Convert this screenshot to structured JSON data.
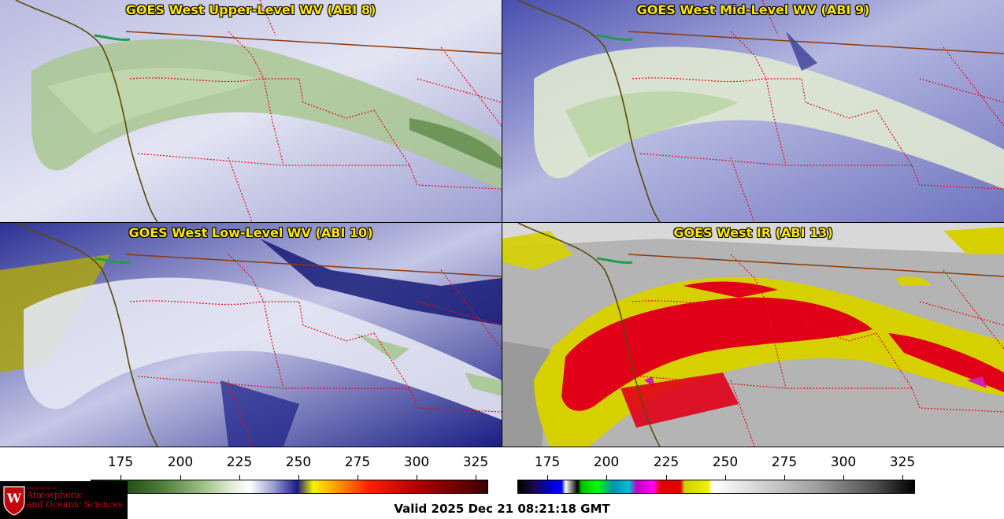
{
  "panels": [
    {
      "id": "upper",
      "title": "GOES West Upper-Level WV (ABI 8)",
      "bg": "#c9cbe6",
      "cloud": "#a7c58e"
    },
    {
      "id": "mid",
      "title": "GOES West Mid-Level WV (ABI 9)",
      "bg": "#8f93cc",
      "cloud": "#dfe9d2"
    },
    {
      "id": "low",
      "title": "GOES West Low-Level WV (ABI 10)",
      "bg": "#3b3f9e",
      "cloud": "#dcdcee"
    },
    {
      "id": "ir",
      "title": "GOES West IR (ABI 13)",
      "bg": "#b8b8b8",
      "cloud": "#d6d000"
    }
  ],
  "colorbar_left": {
    "ticks": [
      "175",
      "200",
      "225",
      "250",
      "275",
      "300",
      "325"
    ]
  },
  "colorbar_right": {
    "ticks": [
      "175",
      "200",
      "225",
      "250",
      "275",
      "300",
      "325"
    ]
  },
  "logo": {
    "department": "Department of",
    "line1": "Atmospheric",
    "line2": "and Oceanic Sciences",
    "shield_letter": "W"
  },
  "valid_time": "Valid 2025 Dec 21 08:21:18 GMT"
}
